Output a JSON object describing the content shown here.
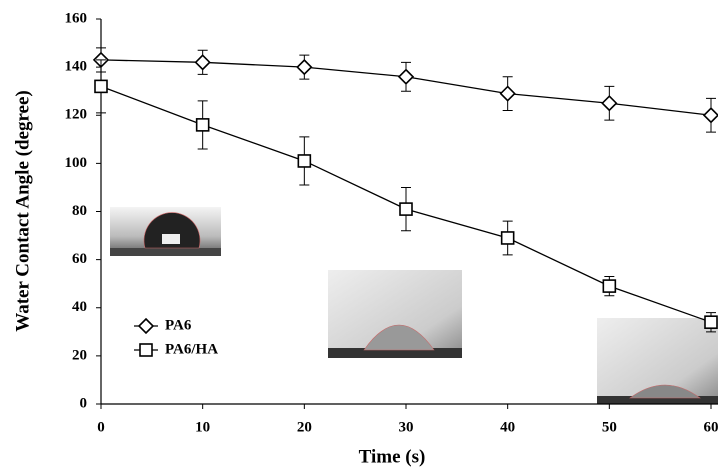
{
  "chart_data": {
    "type": "line",
    "x_label": "Time (s)",
    "y_label": "Water Contact Angle (degree)",
    "x": [
      0,
      10,
      20,
      30,
      40,
      50,
      60
    ],
    "xlim": [
      0,
      60
    ],
    "xticks": [
      0,
      10,
      20,
      30,
      40,
      50,
      60
    ],
    "ylim": [
      0,
      160
    ],
    "yticks": [
      0,
      20,
      40,
      60,
      80,
      100,
      120,
      140,
      160
    ],
    "legend": "lower left",
    "series": [
      {
        "name": "PA6",
        "color": "#000000",
        "marker": "diamond",
        "values": [
          143,
          142,
          140,
          136,
          129,
          125,
          120
        ],
        "errors": [
          5,
          5,
          5,
          6,
          7,
          7,
          7
        ]
      },
      {
        "name": "PA6/HA",
        "color": "#000000",
        "marker": "square",
        "values": [
          132,
          116,
          101,
          81,
          69,
          49,
          34
        ],
        "errors": [
          11,
          10,
          10,
          9,
          7,
          4,
          4
        ]
      }
    ]
  }
}
